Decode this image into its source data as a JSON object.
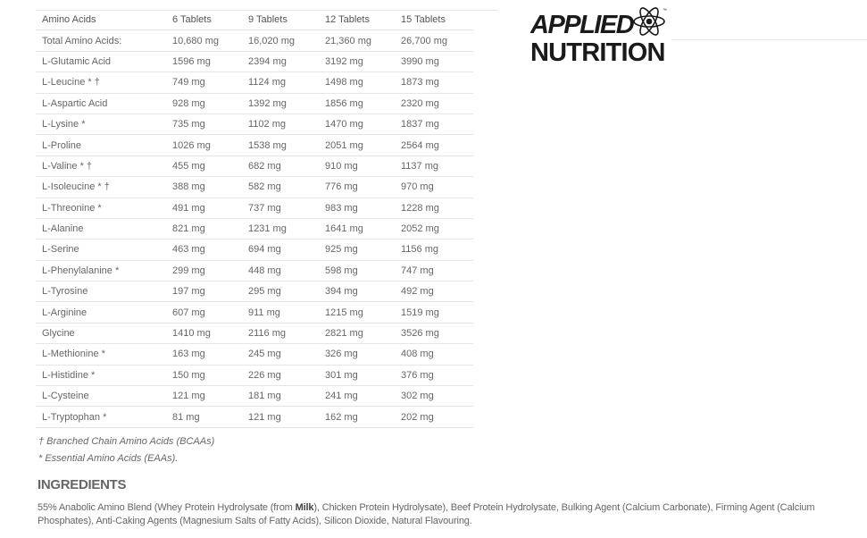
{
  "table": {
    "headers": [
      "Amino Acids",
      "6 Tablets",
      "9 Tablets",
      "12 Tablets",
      "15 Tablets"
    ],
    "rows": [
      [
        "Total Amino Acids:",
        "10,680 mg",
        "16,020 mg",
        "21,360 mg",
        "26,700 mg"
      ],
      [
        "L-Glutamic Acid",
        "1596 mg",
        "2394 mg",
        "3192 mg",
        "3990 mg"
      ],
      [
        "L-Leucine * †",
        "749 mg",
        "1124 mg",
        "1498 mg",
        "1873 mg"
      ],
      [
        "L-Aspartic Acid",
        "928 mg",
        "1392 mg",
        "1856 mg",
        "2320 mg"
      ],
      [
        "L-Lysine *",
        "735 mg",
        "1102 mg",
        "1470 mg",
        "1837 mg"
      ],
      [
        "L-Proline",
        "1026 mg",
        "1538 mg",
        "2051 mg",
        "2564 mg"
      ],
      [
        "L-Valine * †",
        "455 mg",
        "682 mg",
        "910 mg",
        "1137 mg"
      ],
      [
        "L-Isoleucine * †",
        "388 mg",
        "582 mg",
        "776 mg",
        "970 mg"
      ],
      [
        "L-Threonine *",
        "491 mg",
        "737 mg",
        "983 mg",
        "1228 mg"
      ],
      [
        "L-Alanine",
        "821 mg",
        "1231 mg",
        "1641 mg",
        "2052 mg"
      ],
      [
        "L-Serine",
        "463 mg",
        "694 mg",
        "925 mg",
        "1156 mg"
      ],
      [
        "L-Phenylalanine *",
        "299 mg",
        "448 mg",
        "598 mg",
        "747 mg"
      ],
      [
        "L-Tyrosine",
        "197 mg",
        "295 mg",
        "394 mg",
        "492 mg"
      ],
      [
        "L-Arginine",
        "607 mg",
        "911 mg",
        "1215 mg",
        "1519 mg"
      ],
      [
        "Glycine",
        "1410 mg",
        "2116 mg",
        "2821 mg",
        "3526 mg"
      ],
      [
        "L-Methionine *",
        "163 mg",
        "245 mg",
        "326 mg",
        "408 mg"
      ],
      [
        "L-Histidine *",
        "150 mg",
        "226 mg",
        "301 mg",
        "376 mg"
      ],
      [
        "L-Cysteine",
        "121 mg",
        "181 mg",
        "241 mg",
        "302 mg"
      ],
      [
        "L-Tryptophan *",
        "81 mg",
        "121 mg",
        "162 mg",
        "202 mg"
      ]
    ]
  },
  "logo": {
    "line1": "APPLIED",
    "line2": "NUTRITION",
    "tm": "™"
  },
  "notes": {
    "bcaa": "† Branched Chain Amino Acids (BCAAs)",
    "eaa": "* Essential Amino Acids (EAAs)."
  },
  "ingredients": {
    "heading": "INGREDIENTS",
    "before": "55% Anabolic Amino Blend (Whey Protein Hydrolysate (from ",
    "allergen": "Milk",
    "after": "), Chicken Protein Hydrolysate), Beef Protein Hydrolysate, Bulking Agent (Calcium Carbonate), Firming Agent (Calcium Phosphates), Anti-Caking Agents (Magnesium Salts of Fatty Acids), Silicon Dioxide, Natural Flavouring."
  }
}
